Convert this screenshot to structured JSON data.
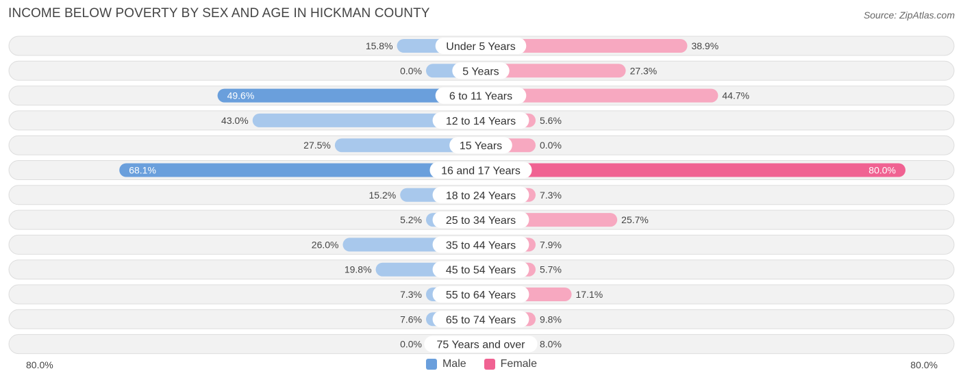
{
  "title": "INCOME BELOW POVERTY BY SEX AND AGE IN HICKMAN COUNTY",
  "source": "Source: ZipAtlas.com",
  "colors": {
    "male_light": "#a8c8ec",
    "male_dark": "#6a9fdc",
    "female_light": "#f7a8c0",
    "female_dark": "#f06292"
  },
  "axis": {
    "left_label": "80.0%",
    "right_label": "80.0%"
  },
  "legend": {
    "male": "Male",
    "female": "Female"
  },
  "chart_data": {
    "type": "bar",
    "orientation": "diverging-horizontal",
    "xlim": [
      -80,
      80
    ],
    "categories": [
      "Under 5 Years",
      "5 Years",
      "6 to 11 Years",
      "12 to 14 Years",
      "15 Years",
      "16 and 17 Years",
      "18 to 24 Years",
      "25 to 34 Years",
      "35 to 44 Years",
      "45 to 54 Years",
      "55 to 64 Years",
      "65 to 74 Years",
      "75 Years and over"
    ],
    "series": [
      {
        "name": "Male",
        "values": [
          15.8,
          0.0,
          49.6,
          43.0,
          27.5,
          68.1,
          15.2,
          5.2,
          26.0,
          19.8,
          7.3,
          7.6,
          0.0
        ],
        "labels": [
          "15.8%",
          "0.0%",
          "49.6%",
          "43.0%",
          "27.5%",
          "68.1%",
          "15.2%",
          "5.2%",
          "26.0%",
          "19.8%",
          "7.3%",
          "7.6%",
          "0.0%"
        ]
      },
      {
        "name": "Female",
        "values": [
          38.9,
          27.3,
          44.7,
          5.6,
          0.0,
          80.0,
          7.3,
          25.7,
          7.9,
          5.7,
          17.1,
          9.8,
          8.0
        ],
        "labels": [
          "38.9%",
          "27.3%",
          "44.7%",
          "5.6%",
          "0.0%",
          "80.0%",
          "7.3%",
          "25.7%",
          "7.9%",
          "5.7%",
          "17.1%",
          "9.8%",
          "8.0%"
        ]
      }
    ]
  }
}
